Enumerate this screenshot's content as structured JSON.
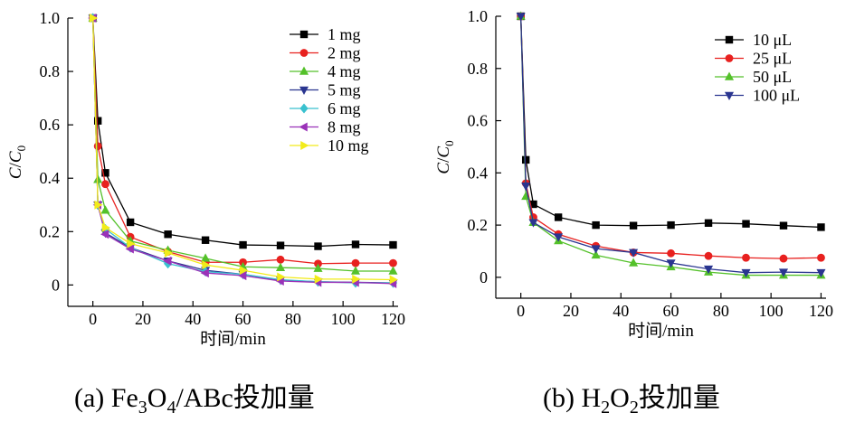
{
  "chart_data": [
    {
      "type": "line",
      "panel": "a",
      "caption": "(a) Fe3O4/ABc投加量",
      "caption_parts": [
        "(a) Fe",
        "3",
        "O",
        "4",
        "/ABc投加量"
      ],
      "xlabel": "时间/min",
      "ylabel_parts": [
        "C",
        "/",
        "C",
        "0"
      ],
      "xlim": [
        -10,
        122
      ],
      "ylim": [
        -0.08,
        1.0
      ],
      "xticks": [
        0,
        20,
        40,
        60,
        80,
        100,
        120
      ],
      "yticks": [
        0,
        0.2,
        0.4,
        0.6,
        0.8,
        1.0
      ],
      "ytick_labels": [
        "0",
        "0.2",
        "0.4",
        "0.6",
        "0.8",
        "1.0"
      ],
      "legend_position": "top-right",
      "grid": false,
      "x": [
        0,
        2,
        5,
        15,
        30,
        45,
        60,
        75,
        90,
        105,
        120
      ],
      "series": [
        {
          "name": "1 mg",
          "color": "#000000",
          "marker": "square",
          "values": [
            1.0,
            0.615,
            0.42,
            0.235,
            0.19,
            0.168,
            0.15,
            0.148,
            0.145,
            0.152,
            0.15
          ]
        },
        {
          "name": "2 mg",
          "color": "#e8211f",
          "marker": "circle",
          "values": [
            1.0,
            0.52,
            0.378,
            0.18,
            0.125,
            0.085,
            0.085,
            0.095,
            0.08,
            0.082,
            0.082
          ]
        },
        {
          "name": "4 mg",
          "color": "#54c12a",
          "marker": "triangle-up",
          "values": [
            1.0,
            0.395,
            0.28,
            0.165,
            0.13,
            0.1,
            0.068,
            0.065,
            0.062,
            0.052,
            0.052
          ]
        },
        {
          "name": "5 mg",
          "color": "#2a3590",
          "marker": "triangle-down",
          "values": [
            1.0,
            0.3,
            0.195,
            0.14,
            0.09,
            0.055,
            0.04,
            0.018,
            0.012,
            0.01,
            0.008
          ]
        },
        {
          "name": "6 mg",
          "color": "#39c1cf",
          "marker": "diamond",
          "values": [
            1.0,
            0.3,
            0.21,
            0.14,
            0.08,
            0.05,
            0.04,
            0.02,
            0.012,
            0.008,
            0.008
          ]
        },
        {
          "name": "8 mg",
          "color": "#9a32b8",
          "marker": "triangle-left",
          "values": [
            1.0,
            0.3,
            0.19,
            0.135,
            0.09,
            0.045,
            0.035,
            0.015,
            0.01,
            0.01,
            0.005
          ]
        },
        {
          "name": "10 mg",
          "color": "#f2eb1a",
          "marker": "triangle-right",
          "values": [
            1.0,
            0.3,
            0.215,
            0.155,
            0.12,
            0.075,
            0.055,
            0.03,
            0.022,
            0.022,
            0.02
          ]
        }
      ]
    },
    {
      "type": "line",
      "panel": "b",
      "caption": "(b) H2O2投加量",
      "caption_parts": [
        "(b) H",
        "2",
        "O",
        "2",
        "投加量"
      ],
      "xlabel": "时间/min",
      "ylabel_parts": [
        "C",
        "/",
        "C",
        "0"
      ],
      "xlim": [
        -10,
        122
      ],
      "ylim": [
        -0.08,
        1.0
      ],
      "xticks": [
        0,
        20,
        40,
        60,
        80,
        100,
        120
      ],
      "yticks": [
        0,
        0.2,
        0.4,
        0.6,
        0.8,
        1.0
      ],
      "ytick_labels": [
        "0",
        "0.2",
        "0.4",
        "0.6",
        "0.8",
        "1.0"
      ],
      "legend_position": "top-right",
      "grid": false,
      "x": [
        0,
        2,
        5,
        15,
        30,
        45,
        60,
        75,
        90,
        105,
        120
      ],
      "series": [
        {
          "name": "10 μL",
          "color": "#000000",
          "marker": "square",
          "values": [
            1.0,
            0.45,
            0.28,
            0.23,
            0.2,
            0.198,
            0.2,
            0.208,
            0.205,
            0.198,
            0.192
          ]
        },
        {
          "name": "25 μL",
          "color": "#e8211f",
          "marker": "circle",
          "values": [
            1.0,
            0.36,
            0.23,
            0.165,
            0.12,
            0.095,
            0.092,
            0.082,
            0.075,
            0.072,
            0.075
          ]
        },
        {
          "name": "50 μL",
          "color": "#54c12a",
          "marker": "triangle-up",
          "values": [
            1.0,
            0.31,
            0.21,
            0.14,
            0.085,
            0.055,
            0.04,
            0.02,
            0.008,
            0.008,
            0.008
          ]
        },
        {
          "name": "100 μL",
          "color": "#2a3590",
          "marker": "triangle-down",
          "values": [
            1.0,
            0.35,
            0.21,
            0.155,
            0.11,
            0.095,
            0.055,
            0.032,
            0.018,
            0.02,
            0.018
          ]
        }
      ]
    }
  ]
}
